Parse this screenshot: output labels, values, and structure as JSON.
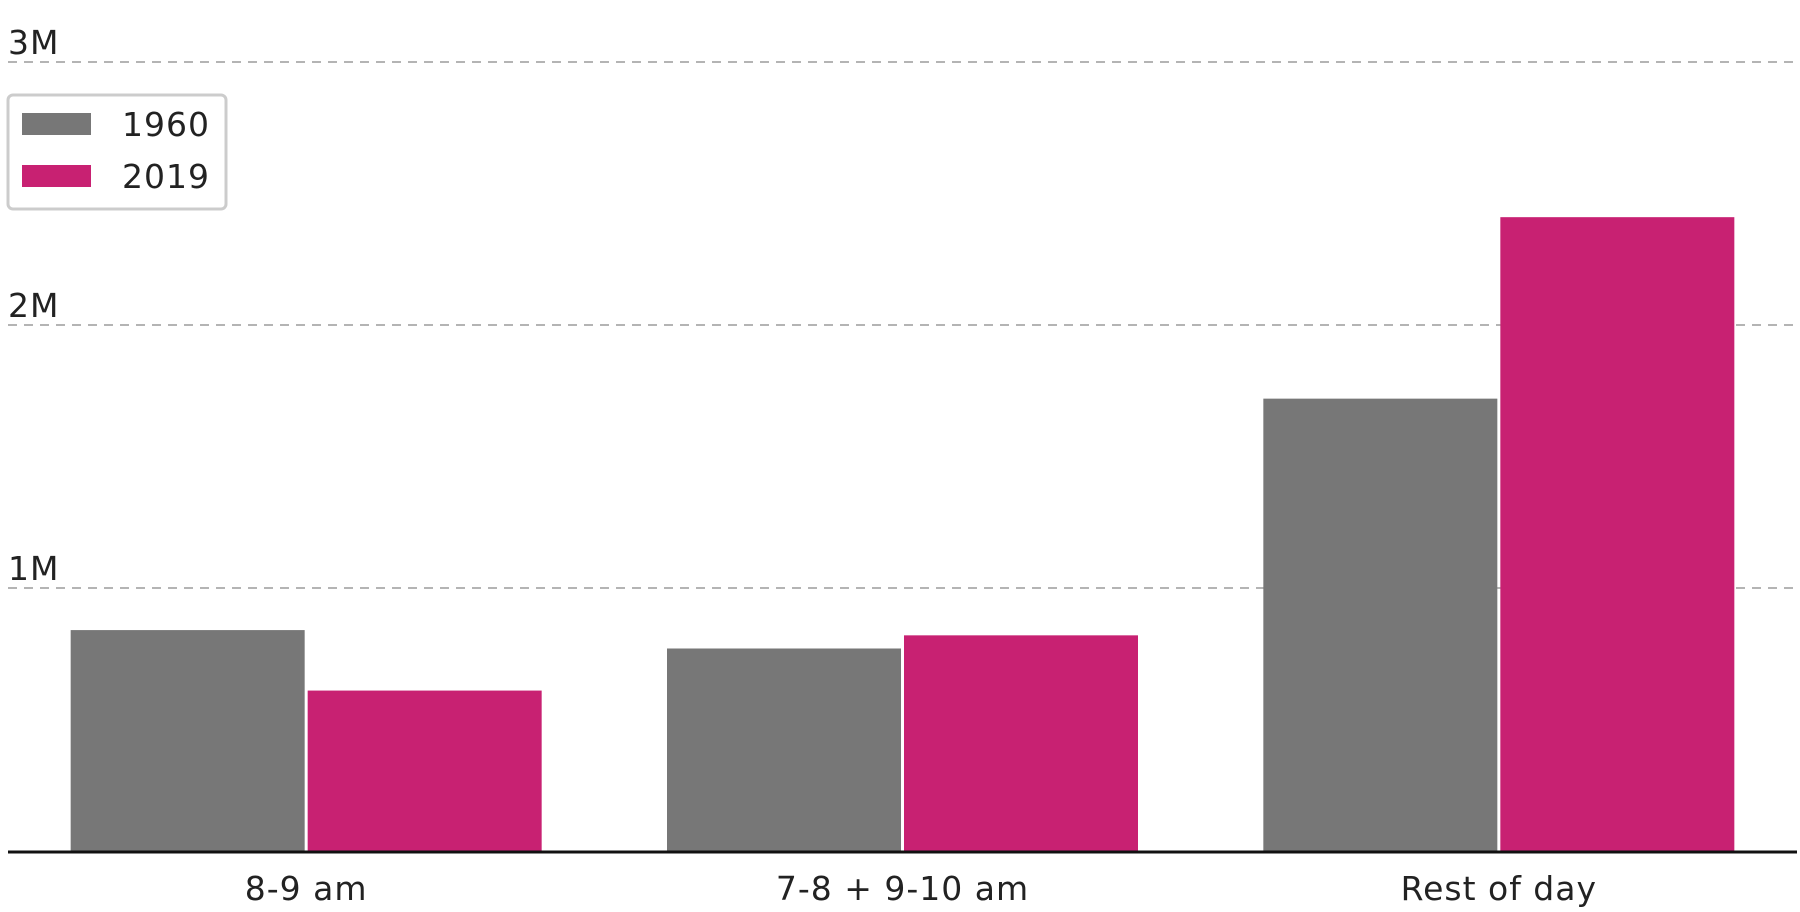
{
  "chart_data": {
    "type": "bar",
    "categories": [
      "8-9 am",
      "7-8 + 9-10 am",
      "Rest of day"
    ],
    "series": [
      {
        "name": "1960",
        "color": "#777777",
        "values": [
          840000,
          770000,
          1720000
        ]
      },
      {
        "name": "2019",
        "color": "#c82172",
        "values": [
          610000,
          820000,
          2410000
        ]
      }
    ],
    "ylim": [
      0,
      3000000
    ],
    "yticks": [
      {
        "value": 1000000,
        "label": "1M"
      },
      {
        "value": 2000000,
        "label": "2M"
      },
      {
        "value": 3000000,
        "label": "3M"
      }
    ],
    "grid": true,
    "legend": "top-left"
  }
}
